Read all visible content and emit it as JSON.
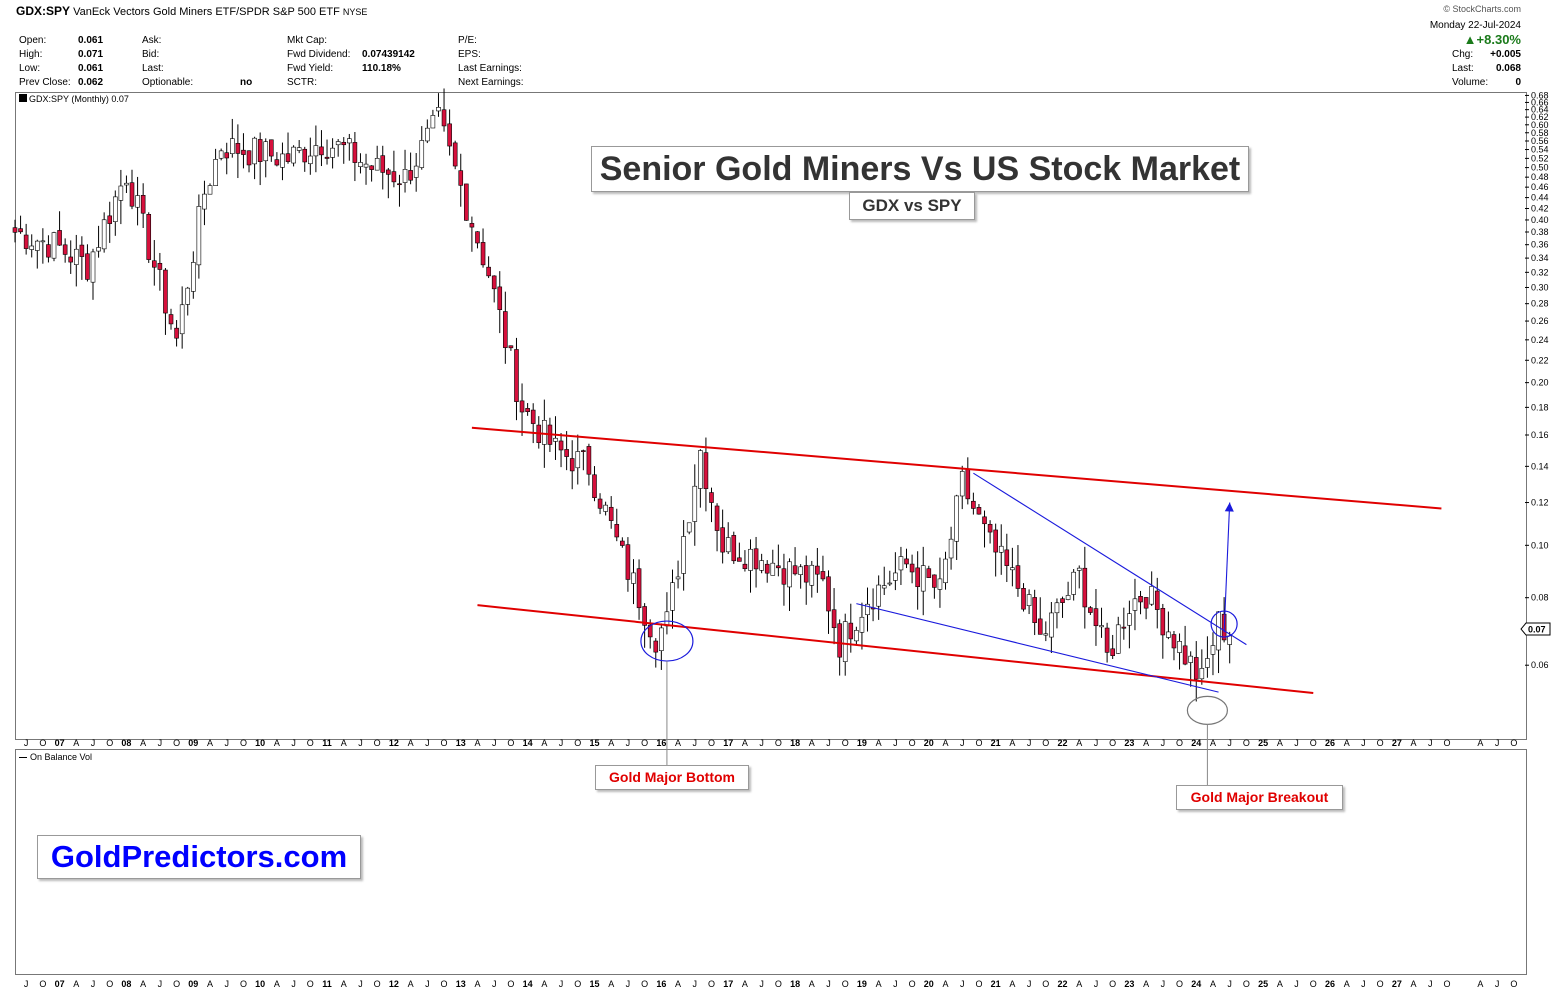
{
  "header": {
    "symbol": "GDX:SPY",
    "description": "VanEck Vectors Gold Miners ETF/SPDR S&P 500 ETF",
    "exchange": "NYSE",
    "source": "© StockCharts.com",
    "date": "Monday  22-Jul-2024",
    "change_pct": "▲+8.30%",
    "stats_col1": [
      {
        "label": "Open:",
        "value": "0.061"
      },
      {
        "label": "High:",
        "value": "0.071"
      },
      {
        "label": "Low:",
        "value": "0.061"
      },
      {
        "label": "Prev Close:",
        "value": "0.062"
      }
    ],
    "stats_col2": [
      {
        "label": "Ask:",
        "value": ""
      },
      {
        "label": "Bid:",
        "value": ""
      },
      {
        "label": "Last:",
        "value": ""
      },
      {
        "label": "Optionable:",
        "value": "no"
      }
    ],
    "stats_col3": [
      {
        "label": "Mkt Cap:",
        "value": ""
      },
      {
        "label": "Fwd Dividend:",
        "value": "0.07439142"
      },
      {
        "label": "Fwd Yield:",
        "value": "110.18%"
      },
      {
        "label": "SCTR:",
        "value": ""
      }
    ],
    "stats_col4": [
      {
        "label": "P/E:",
        "value": ""
      },
      {
        "label": "EPS:",
        "value": ""
      },
      {
        "label": "Last Earnings:",
        "value": ""
      },
      {
        "label": "Next Earnings:",
        "value": ""
      }
    ],
    "stats_right": [
      {
        "label": "Chg:",
        "value": "+0.005"
      },
      {
        "label": "Last:",
        "value": "0.068"
      },
      {
        "label": "Volume:",
        "value": "0"
      }
    ]
  },
  "legend": {
    "price": "GDX:SPY (Monthly) 0.07",
    "lower": "On Balance Vol"
  },
  "annotations": {
    "title": "Senior Gold Miners Vs US Stock Market",
    "subtitle": "GDX vs SPY",
    "bottom_callout": "Gold Major Bottom",
    "breakout_callout": "Gold Major Breakout",
    "brand": "GoldPredictors.com",
    "last_value_tag": "0.07"
  },
  "colors": {
    "up_candle": "#ffffff",
    "down_candle": "#d6103c",
    "channel": "#e00000",
    "wedge": "#1a1adc",
    "brand": "#0000ff"
  },
  "chart_data": {
    "type": "candlestick",
    "interval": "monthly",
    "scale": "log",
    "ylim": [
      0.044,
      0.69
    ],
    "yticks": [
      0.06,
      0.08,
      0.1,
      0.12,
      0.14,
      0.16,
      0.18,
      0.2,
      0.22,
      0.24,
      0.26,
      0.28,
      0.3,
      0.32,
      0.34,
      0.36,
      0.38,
      0.4,
      0.42,
      0.44,
      0.46,
      0.48,
      0.5,
      0.52,
      0.54,
      0.56,
      0.58,
      0.6,
      0.62,
      0.64,
      0.66,
      0.68
    ],
    "xlim": [
      "2006-05",
      "2028-12"
    ],
    "year_ticks": [
      "07",
      "08",
      "09",
      "10",
      "11",
      "12",
      "13",
      "14",
      "15",
      "16",
      "17",
      "18",
      "19",
      "20",
      "21",
      "22",
      "23",
      "24",
      "25",
      "26",
      "27"
    ],
    "month_ticks": [
      "J",
      "A",
      "J",
      "O"
    ],
    "last_value": 0.07,
    "anchors": [
      {
        "date": "2006-05",
        "close": 0.38
      },
      {
        "date": "2006-12",
        "close": 0.36
      },
      {
        "date": "2007-06",
        "close": 0.33
      },
      {
        "date": "2008-01",
        "close": 0.49
      },
      {
        "date": "2008-10",
        "close": 0.24
      },
      {
        "date": "2009-03",
        "close": 0.45
      },
      {
        "date": "2009-06",
        "close": 0.55
      },
      {
        "date": "2010-06",
        "close": 0.52
      },
      {
        "date": "2010-12",
        "close": 0.56
      },
      {
        "date": "2011-04",
        "close": 0.54
      },
      {
        "date": "2011-09",
        "close": 0.5
      },
      {
        "date": "2012-03",
        "close": 0.48
      },
      {
        "date": "2012-09",
        "close": 0.61
      },
      {
        "date": "2013-01",
        "close": 0.46
      },
      {
        "date": "2013-06",
        "close": 0.32
      },
      {
        "date": "2013-12",
        "close": 0.18
      },
      {
        "date": "2014-06",
        "close": 0.15
      },
      {
        "date": "2014-12",
        "close": 0.14
      },
      {
        "date": "2015-06",
        "close": 0.095
      },
      {
        "date": "2015-12",
        "close": 0.068
      },
      {
        "date": "2016-02",
        "close": 0.072
      },
      {
        "date": "2016-08",
        "close": 0.15
      },
      {
        "date": "2016-12",
        "close": 0.1
      },
      {
        "date": "2017-06",
        "close": 0.096
      },
      {
        "date": "2017-12",
        "close": 0.09
      },
      {
        "date": "2018-06",
        "close": 0.085
      },
      {
        "date": "2018-09",
        "close": 0.066
      },
      {
        "date": "2019-02",
        "close": 0.08
      },
      {
        "date": "2019-09",
        "close": 0.092
      },
      {
        "date": "2020-03",
        "close": 0.082
      },
      {
        "date": "2020-07",
        "close": 0.13
      },
      {
        "date": "2020-12",
        "close": 0.1
      },
      {
        "date": "2021-06",
        "close": 0.081
      },
      {
        "date": "2021-09",
        "close": 0.067
      },
      {
        "date": "2022-04",
        "close": 0.088
      },
      {
        "date": "2022-09",
        "close": 0.062
      },
      {
        "date": "2023-01",
        "close": 0.078
      },
      {
        "date": "2023-04",
        "close": 0.082
      },
      {
        "date": "2023-10",
        "close": 0.065
      },
      {
        "date": "2024-02",
        "close": 0.056
      },
      {
        "date": "2024-05",
        "close": 0.072
      },
      {
        "date": "2024-07",
        "close": 0.068
      }
    ],
    "trendlines": [
      {
        "name": "upper channel",
        "color": "red",
        "from": {
          "date": "2013-03",
          "value": 0.165
        },
        "to": {
          "date": "2027-09",
          "value": 0.117
        }
      },
      {
        "name": "lower channel",
        "color": "red",
        "from": {
          "date": "2013-04",
          "value": 0.0775
        },
        "to": {
          "date": "2025-10",
          "value": 0.0533
        }
      },
      {
        "name": "wedge upper",
        "color": "blue",
        "from": {
          "date": "2020-09",
          "value": 0.136
        },
        "to": {
          "date": "2024-10",
          "value": 0.0655
        }
      },
      {
        "name": "wedge lower",
        "color": "blue",
        "from": {
          "date": "2018-12",
          "value": 0.078
        },
        "to": {
          "date": "2024-05",
          "value": 0.0535
        }
      },
      {
        "name": "projection arrow",
        "color": "blue",
        "from": {
          "date": "2024-06",
          "value": 0.069
        },
        "to": {
          "date": "2024-07",
          "value": 0.12
        }
      }
    ]
  }
}
